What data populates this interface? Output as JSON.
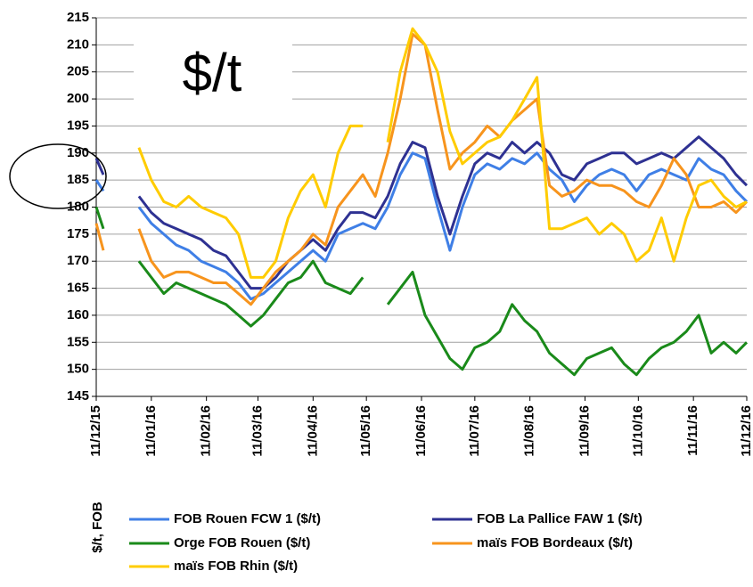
{
  "chart_data": {
    "type": "line",
    "annotations": [
      "$/t"
    ],
    "ylabel": "$/t, FOB",
    "x": [
      "11/12/15",
      "15/12/15",
      "22/12/15",
      "29/12/15",
      "04/01/16",
      "11/01/16",
      "18/01/16",
      "25/01/16",
      "01/02/16",
      "08/02/16",
      "15/02/16",
      "22/02/16",
      "29/02/16",
      "07/03/16",
      "14/03/16",
      "21/03/16",
      "28/03/16",
      "04/04/16",
      "11/04/16",
      "18/04/16",
      "25/04/16",
      "02/05/16",
      "09/05/16",
      "16/05/16",
      "23/05/16",
      "30/05/16",
      "06/06/16",
      "13/06/16",
      "20/06/16",
      "27/06/16",
      "04/07/16",
      "11/07/16",
      "18/07/16",
      "25/07/16",
      "01/08/16",
      "08/08/16",
      "15/08/16",
      "22/08/16",
      "29/08/16",
      "05/09/16",
      "12/09/16",
      "19/09/16",
      "26/09/16",
      "03/10/16",
      "10/10/16",
      "17/10/16",
      "24/10/16",
      "31/10/16",
      "07/11/16",
      "14/11/16",
      "21/11/16",
      "28/11/16",
      "05/12/16",
      "11/12/16"
    ],
    "series": [
      {
        "name": "FOB Rouen FCW 1 ($/t)",
        "color": "#3f7fe6",
        "values": [
          185,
          183,
          null,
          null,
          180,
          177,
          175,
          173,
          172,
          170,
          169,
          168,
          166,
          163,
          164,
          166,
          168,
          170,
          172,
          170,
          175,
          176,
          177,
          176,
          180,
          186,
          190,
          189,
          180,
          172,
          180,
          186,
          188,
          187,
          189,
          188,
          190,
          187,
          185,
          181,
          184,
          186,
          187,
          186,
          183,
          186,
          187,
          186,
          185,
          189,
          187,
          186,
          183,
          181
        ]
      },
      {
        "name": "FOB La Pallice FAW 1 ($/t)",
        "color": "#2e3192",
        "values": [
          189,
          186,
          null,
          null,
          182,
          179,
          177,
          176,
          175,
          174,
          172,
          171,
          168,
          165,
          165,
          167,
          170,
          172,
          174,
          172,
          176,
          179,
          179,
          178,
          182,
          188,
          192,
          191,
          182,
          175,
          182,
          188,
          190,
          189,
          192,
          190,
          192,
          190,
          186,
          185,
          188,
          189,
          190,
          190,
          188,
          189,
          190,
          189,
          191,
          193,
          191,
          189,
          186,
          184
        ]
      },
      {
        "name": "Orge FOB Rouen ($/t)",
        "color": "#1a8a1a",
        "values": [
          180,
          176,
          null,
          null,
          170,
          167,
          164,
          166,
          165,
          164,
          163,
          162,
          160,
          158,
          160,
          163,
          166,
          167,
          170,
          166,
          165,
          164,
          167,
          null,
          162,
          165,
          168,
          160,
          156,
          152,
          150,
          154,
          155,
          157,
          162,
          159,
          157,
          153,
          151,
          149,
          152,
          153,
          154,
          151,
          149,
          152,
          154,
          155,
          157,
          160,
          153,
          155,
          153,
          155
        ]
      },
      {
        "name": "maïs FOB Bordeaux ($/t)",
        "color": "#f7941d",
        "values": [
          177,
          172,
          null,
          null,
          176,
          170,
          167,
          168,
          168,
          167,
          166,
          166,
          164,
          162,
          165,
          168,
          170,
          172,
          175,
          173,
          180,
          183,
          186,
          182,
          190,
          200,
          212,
          210,
          198,
          187,
          190,
          192,
          195,
          193,
          196,
          198,
          200,
          184,
          182,
          183,
          185,
          184,
          184,
          183,
          181,
          180,
          184,
          189,
          186,
          180,
          180,
          181,
          179,
          181
        ]
      },
      {
        "name": "maïs FOB Rhin ($/t)",
        "color": "#ffcc00",
        "values": [
          null,
          null,
          null,
          null,
          191,
          185,
          181,
          180,
          182,
          180,
          179,
          178,
          175,
          167,
          167,
          170,
          178,
          183,
          186,
          180,
          190,
          195,
          195,
          null,
          192,
          205,
          213,
          210,
          205,
          194,
          188,
          190,
          192,
          193,
          196,
          200,
          204,
          176,
          176,
          177,
          178,
          175,
          177,
          175,
          170,
          172,
          178,
          170,
          178,
          184,
          185,
          182,
          180,
          181
        ]
      }
    ],
    "xlim": [
      "11/12/15",
      "11/12/16"
    ],
    "xticks": [
      "11/12/15",
      "11/01/16",
      "11/02/16",
      "11/03/16",
      "11/04/16",
      "11/05/16",
      "11/06/16",
      "11/07/16",
      "11/08/16",
      "11/09/16",
      "11/10/16",
      "11/11/16",
      "11/12/16"
    ],
    "ylim": [
      145,
      215
    ],
    "yticks": [
      145,
      150,
      155,
      160,
      165,
      170,
      175,
      180,
      185,
      190,
      195,
      200,
      205,
      210,
      215
    ],
    "grid": true
  }
}
